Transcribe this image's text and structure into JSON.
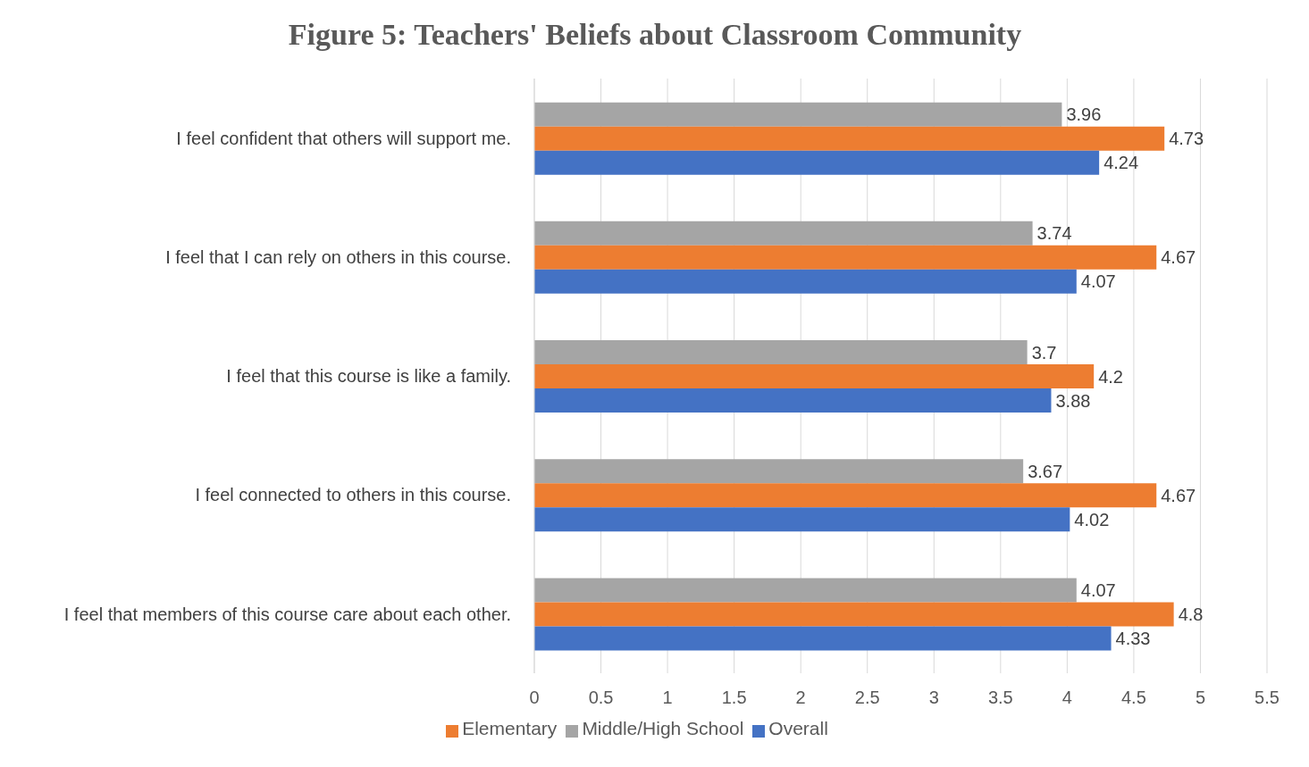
{
  "chart_data": {
    "type": "bar",
    "orientation": "horizontal",
    "title": "Figure 5: Teachers' Beliefs about Classroom Community",
    "categories": [
      "I feel confident that others will support me.",
      "I feel that I can rely on others in this course.",
      "I feel that this course is like a family.",
      "I feel connected to others in this course.",
      "I feel that members of this course care about each other."
    ],
    "series": [
      {
        "name": "Middle/High School",
        "color": "#a5a5a5",
        "values": [
          3.96,
          3.74,
          3.7,
          3.67,
          4.07
        ]
      },
      {
        "name": "Elementary",
        "color": "#ed7d31",
        "values": [
          4.73,
          4.67,
          4.2,
          4.67,
          4.8
        ]
      },
      {
        "name": "Overall",
        "color": "#4472c4",
        "values": [
          4.24,
          4.07,
          3.88,
          4.02,
          4.33
        ]
      }
    ],
    "xlim": [
      0,
      5.5
    ],
    "xticks": [
      0,
      0.5,
      1,
      1.5,
      2,
      2.5,
      3,
      3.5,
      4,
      4.5,
      5,
      5.5
    ],
    "grid": "x",
    "legend": "bottom",
    "data_labels": true
  }
}
